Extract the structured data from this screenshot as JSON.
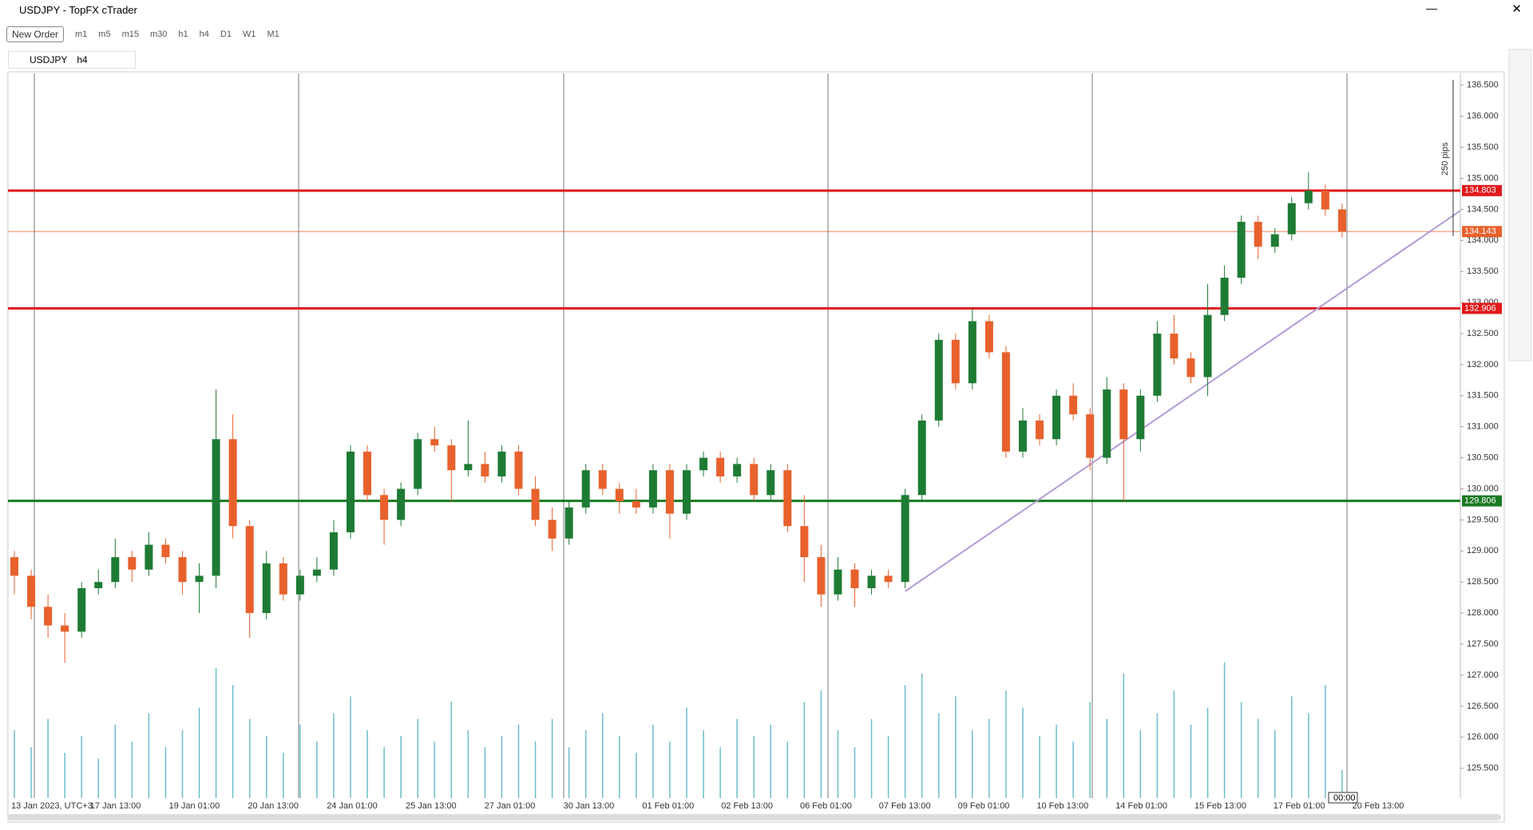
{
  "window": {
    "title": "USDJPY - TopFX cTrader",
    "new_order": "New Order",
    "timeframes": [
      "m1",
      "m5",
      "m15",
      "m30",
      "h1",
      "h4",
      "D1",
      "W1",
      "M1"
    ],
    "tab_symbol": "USDJPY",
    "tab_timeframe": "h4"
  },
  "chart_data": {
    "type": "candlestick",
    "open": [
      128.9,
      128.6,
      128.1,
      127.8,
      127.7,
      128.4,
      128.5,
      128.9,
      128.7,
      129.1,
      128.9,
      128.5,
      128.6,
      130.8,
      129.4,
      128.0,
      128.8,
      128.3,
      128.6,
      128.7,
      129.3,
      130.6,
      129.9,
      129.5,
      130.0,
      130.8,
      130.7,
      130.3,
      130.4,
      130.2,
      130.6,
      130.0,
      129.5,
      129.2,
      129.7,
      130.3,
      130.0,
      129.8,
      129.7,
      130.3,
      129.6,
      130.3,
      130.5,
      130.2,
      130.4,
      129.9,
      130.3,
      129.4,
      128.9,
      128.3,
      128.7,
      128.4,
      128.6,
      128.5,
      129.9,
      131.1,
      132.4,
      131.7,
      132.7,
      132.2,
      130.6,
      131.1,
      130.8,
      131.5,
      131.2,
      130.5,
      131.6,
      130.8,
      131.5,
      132.5,
      132.1,
      131.8,
      132.8,
      133.4,
      134.3,
      133.9,
      134.1,
      134.6,
      134.8,
      134.5
    ],
    "high": [
      129.0,
      128.7,
      128.3,
      128.0,
      128.5,
      128.7,
      129.2,
      129.0,
      129.3,
      129.2,
      129.0,
      128.8,
      131.6,
      131.2,
      129.5,
      129.0,
      128.9,
      128.7,
      128.9,
      129.5,
      130.7,
      130.7,
      130.0,
      130.1,
      130.9,
      131.0,
      130.8,
      131.1,
      130.6,
      130.7,
      130.7,
      130.2,
      129.7,
      129.8,
      130.4,
      130.4,
      130.1,
      130.0,
      130.4,
      130.4,
      130.4,
      130.6,
      130.6,
      130.5,
      130.5,
      130.4,
      130.4,
      129.9,
      129.1,
      128.9,
      128.8,
      128.7,
      128.7,
      130.0,
      131.2,
      132.5,
      132.5,
      132.9,
      132.8,
      132.3,
      131.3,
      131.2,
      131.6,
      131.7,
      131.3,
      131.8,
      131.7,
      131.6,
      132.7,
      132.8,
      132.2,
      133.3,
      133.6,
      134.4,
      134.4,
      134.2,
      134.7,
      135.1,
      134.9,
      134.6
    ],
    "low": [
      128.3,
      127.9,
      127.6,
      127.2,
      127.6,
      128.3,
      128.4,
      128.5,
      128.6,
      128.8,
      128.3,
      128.0,
      128.4,
      129.2,
      127.6,
      127.9,
      128.2,
      128.2,
      128.5,
      128.6,
      129.2,
      129.8,
      129.1,
      129.4,
      129.9,
      130.6,
      129.8,
      130.2,
      130.1,
      130.1,
      129.9,
      129.4,
      129.0,
      129.1,
      129.6,
      129.9,
      129.6,
      129.6,
      129.6,
      129.2,
      129.5,
      130.2,
      130.1,
      130.1,
      129.8,
      129.8,
      129.3,
      128.5,
      128.1,
      128.2,
      128.1,
      128.3,
      128.4,
      128.4,
      129.8,
      131.0,
      131.6,
      131.6,
      132.1,
      130.5,
      130.5,
      130.7,
      130.7,
      131.1,
      130.3,
      130.4,
      129.8,
      130.6,
      131.4,
      132.0,
      131.7,
      131.5,
      132.7,
      133.3,
      133.7,
      133.8,
      134.0,
      134.5,
      134.4,
      134.05
    ],
    "close": [
      128.6,
      128.1,
      127.8,
      127.7,
      128.4,
      128.5,
      128.9,
      128.7,
      129.1,
      128.9,
      128.5,
      128.6,
      130.8,
      129.4,
      128.0,
      128.8,
      128.3,
      128.6,
      128.7,
      129.3,
      130.6,
      129.9,
      129.5,
      130.0,
      130.8,
      130.7,
      130.3,
      130.4,
      130.2,
      130.6,
      130.0,
      129.5,
      129.2,
      129.7,
      130.3,
      130.0,
      129.8,
      129.7,
      130.3,
      129.6,
      130.3,
      130.5,
      130.2,
      130.4,
      129.9,
      130.3,
      129.4,
      128.9,
      128.3,
      128.7,
      128.4,
      128.6,
      128.5,
      129.9,
      131.1,
      132.4,
      131.7,
      132.7,
      132.2,
      130.6,
      131.1,
      130.8,
      131.5,
      131.2,
      130.5,
      131.6,
      130.8,
      131.5,
      132.5,
      132.1,
      131.8,
      132.8,
      133.4,
      134.3,
      133.9,
      134.1,
      134.6,
      134.8,
      134.5,
      134.14
    ],
    "volume": [
      60,
      45,
      70,
      40,
      55,
      35,
      65,
      50,
      75,
      45,
      60,
      80,
      115,
      100,
      70,
      55,
      40,
      65,
      50,
      75,
      90,
      60,
      45,
      55,
      70,
      50,
      85,
      60,
      45,
      55,
      65,
      50,
      70,
      45,
      60,
      75,
      55,
      40,
      65,
      50,
      80,
      60,
      45,
      70,
      55,
      65,
      50,
      85,
      95,
      60,
      45,
      70,
      55,
      100,
      110,
      75,
      90,
      60,
      70,
      95,
      80,
      55,
      65,
      50,
      85,
      70,
      110,
      60,
      75,
      95,
      65,
      80,
      120,
      85,
      70,
      60,
      90,
      75,
      100,
      25
    ],
    "up_color": "#1e7b34",
    "down_color": "#e8612c",
    "volume_color": "#6cbccc",
    "ylim": [
      125.02,
      136.69
    ],
    "yticks": [
      {
        "value": 125.5,
        "label": "125.500"
      },
      {
        "value": 126,
        "label": "126.000"
      },
      {
        "value": 126.5,
        "label": "126.500"
      },
      {
        "value": 127,
        "label": "127.000"
      },
      {
        "value": 127.5,
        "label": "127.500"
      },
      {
        "value": 128,
        "label": "128.000"
      },
      {
        "value": 128.5,
        "label": "128.500"
      },
      {
        "value": 129,
        "label": "129.000"
      },
      {
        "value": 129.5,
        "label": "129.500"
      },
      {
        "value": 130,
        "label": "130.000"
      },
      {
        "value": 130.5,
        "label": "130.500"
      },
      {
        "value": 131,
        "label": "131.000"
      },
      {
        "value": 131.5,
        "label": "131.500"
      },
      {
        "value": 132,
        "label": "132.000"
      },
      {
        "value": 132.5,
        "label": "132.500"
      },
      {
        "value": 133,
        "label": "133.000"
      },
      {
        "value": 133.5,
        "label": "133.500"
      },
      {
        "value": 134,
        "label": "134.000"
      },
      {
        "value": 134.5,
        "label": "134.500"
      },
      {
        "value": 135,
        "label": "135.000"
      },
      {
        "value": 135.5,
        "label": "135.500"
      },
      {
        "value": 136,
        "label": "136.000"
      },
      {
        "value": 136.5,
        "label": "136.500"
      }
    ],
    "x_labels": [
      "13 Jan 2023, UTC+3",
      "17 Jan 13:00",
      "19 Jan 01:00",
      "20 Jan 13:00",
      "24 Jan 01:00",
      "25 Jan 13:00",
      "27 Jan 01:00",
      "30 Jan 13:00",
      "01 Feb 01:00",
      "02 Feb 13:00",
      "06 Feb 01:00",
      "07 Feb 13:00",
      "09 Feb 01:00",
      "10 Feb 13:00",
      "14 Feb 01:00",
      "15 Feb 13:00",
      "17 Feb 01:00",
      "20 Feb 13:00"
    ],
    "levels": [
      {
        "value": 134.803,
        "color": "#e0191b"
      },
      {
        "value": 134.143,
        "color": "#e8612c"
      },
      {
        "value": 132.906,
        "color": "#e0191b"
      },
      {
        "value": 129.806,
        "color": "#1a7a22"
      }
    ],
    "trendline": {
      "values": [
        128.35,
        134.48
      ],
      "color": "#b49bd6"
    },
    "ruler_label": "250 pips",
    "crosshair_label": "00:00"
  }
}
